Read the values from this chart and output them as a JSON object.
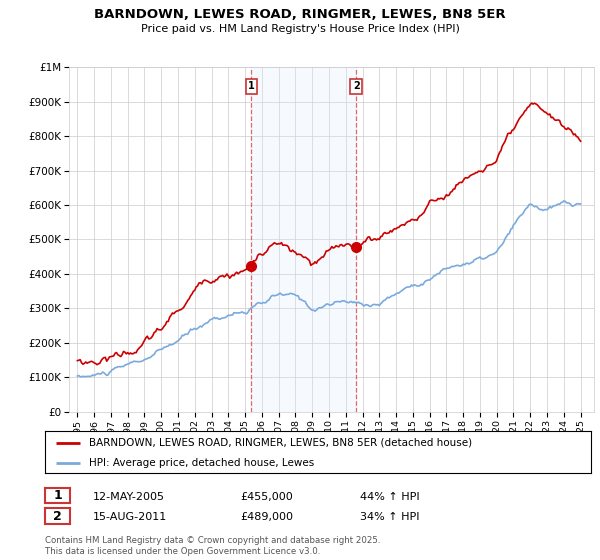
{
  "title": "BARNDOWN, LEWES ROAD, RINGMER, LEWES, BN8 5ER",
  "subtitle": "Price paid vs. HM Land Registry's House Price Index (HPI)",
  "legend_label_red": "BARNDOWN, LEWES ROAD, RINGMER, LEWES, BN8 5ER (detached house)",
  "legend_label_blue": "HPI: Average price, detached house, Lewes",
  "footnote": "Contains HM Land Registry data © Crown copyright and database right 2025.\nThis data is licensed under the Open Government Licence v3.0.",
  "sale1_date": "12-MAY-2005",
  "sale1_price": "£455,000",
  "sale1_hpi": "44% ↑ HPI",
  "sale2_date": "15-AUG-2011",
  "sale2_price": "£489,000",
  "sale2_hpi": "34% ↑ HPI",
  "sale1_year": 2005.37,
  "sale1_value": 455000,
  "sale2_year": 2011.62,
  "sale2_value": 489000,
  "ylim": [
    0,
    1000000
  ],
  "xlim_left": 1994.5,
  "xlim_right": 2025.8,
  "background_color": "#ffffff",
  "plot_bg_color": "#ffffff",
  "grid_color": "#cccccc",
  "red_color": "#cc0000",
  "blue_color": "#7aaadd",
  "shade_color": "#ddeeff",
  "yticks": [
    0,
    100000,
    200000,
    300000,
    400000,
    500000,
    600000,
    700000,
    800000,
    900000,
    1000000
  ],
  "ytick_labels": [
    "£0",
    "£100K",
    "£200K",
    "£300K",
    "£400K",
    "£500K",
    "£600K",
    "£700K",
    "£800K",
    "£900K",
    "£1M"
  ],
  "xticks": [
    1995,
    1996,
    1997,
    1998,
    1999,
    2000,
    2001,
    2002,
    2003,
    2004,
    2005,
    2006,
    2007,
    2008,
    2009,
    2010,
    2011,
    2012,
    2013,
    2014,
    2015,
    2016,
    2017,
    2018,
    2019,
    2020,
    2021,
    2022,
    2023,
    2024,
    2025
  ],
  "hpi_anchors_years": [
    1995,
    1996,
    1997,
    1998,
    1999,
    2000,
    2001,
    2002,
    2003,
    2004,
    2005,
    2006,
    2007,
    2008,
    2009,
    2010,
    2011,
    2012,
    2013,
    2014,
    2015,
    2016,
    2017,
    2018,
    2019,
    2020,
    2021,
    2022,
    2023,
    2024,
    2025
  ],
  "hpi_anchors_vals": [
    103000,
    106000,
    118000,
    130000,
    148000,
    170000,
    198000,
    230000,
    263000,
    283000,
    296000,
    312000,
    336000,
    326000,
    293000,
    312000,
    316000,
    308000,
    318000,
    348000,
    378000,
    405000,
    435000,
    452000,
    462000,
    478000,
    548000,
    608000,
    595000,
    608000,
    603000
  ],
  "red_anchors_years": [
    1995,
    1996,
    1997,
    1998,
    1999,
    2000,
    2001,
    2002,
    2003,
    2004,
    2005,
    2006,
    2007,
    2008,
    2009,
    2010,
    2011,
    2012,
    2013,
    2014,
    2015,
    2016,
    2017,
    2018,
    2019,
    2020,
    2021,
    2022,
    2023,
    2024,
    2025
  ],
  "red_anchors_vals": [
    148000,
    153000,
    173000,
    193000,
    218000,
    255000,
    305000,
    363000,
    415000,
    445000,
    455000,
    505000,
    530000,
    490000,
    445000,
    470000,
    489000,
    505000,
    520000,
    558000,
    590000,
    628000,
    668000,
    710000,
    748000,
    775000,
    840000,
    880000,
    865000,
    820000,
    785000
  ]
}
